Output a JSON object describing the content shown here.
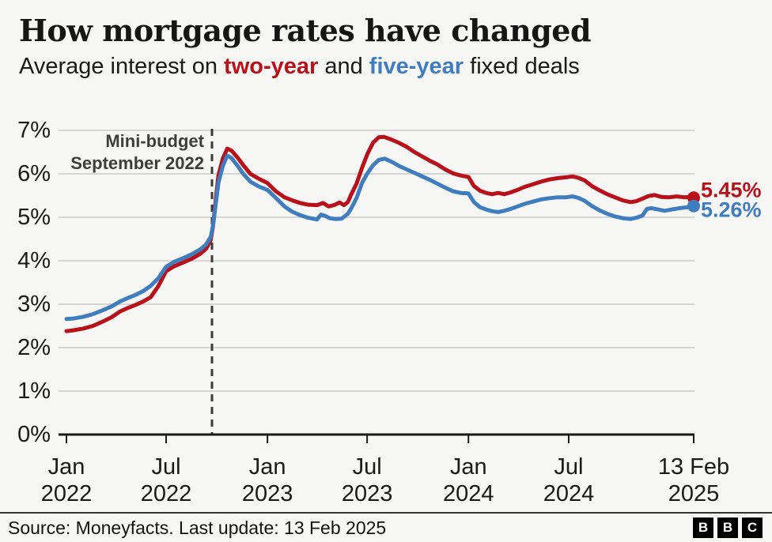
{
  "header": {
    "title": "How mortgage rates have changed",
    "subtitle": {
      "part1": "Average interest on ",
      "two_year_label": "two-year",
      "part2": " and ",
      "five_year_label": "five-year",
      "part3": " fixed deals"
    }
  },
  "colors": {
    "two_year": "#b91119",
    "five_year": "#3f7dbe",
    "axis": "#1a1a1a",
    "gridline": "#d5d5d5",
    "dashed_line": "#3a3a3a",
    "annotation_text": "#3d3d3d",
    "background": "#f6f6f5"
  },
  "footer": {
    "source": "Source: Moneyfacts. Last update: 13 Feb 2025",
    "logo_letters": [
      "B",
      "B",
      "C"
    ]
  },
  "chart_data": {
    "type": "line",
    "title": "How mortgage rates have changed",
    "subtitle": "Average interest on two-year and five-year fixed deals",
    "x_range": [
      "2022-01-01",
      "2025-02-13"
    ],
    "ylim": [
      0,
      7
    ],
    "grid": true,
    "y_ticks": [
      {
        "v": 7,
        "label": "7%"
      },
      {
        "v": 6,
        "label": "6%"
      },
      {
        "v": 5,
        "label": "5%"
      },
      {
        "v": 4,
        "label": "4%"
      },
      {
        "v": 3,
        "label": "3%"
      },
      {
        "v": 2,
        "label": "2%"
      },
      {
        "v": 1,
        "label": "1%"
      },
      {
        "v": 0,
        "label": "0%"
      }
    ],
    "x_ticks": [
      {
        "date": "2022-01-01",
        "lines": [
          "Jan",
          "2022"
        ]
      },
      {
        "date": "2022-07-01",
        "lines": [
          "Jul",
          "2022"
        ]
      },
      {
        "date": "2023-01-01",
        "lines": [
          "Jan",
          "2023"
        ]
      },
      {
        "date": "2023-07-01",
        "lines": [
          "Jul",
          "2023"
        ]
      },
      {
        "date": "2024-01-01",
        "lines": [
          "Jan",
          "2024"
        ]
      },
      {
        "date": "2024-07-01",
        "lines": [
          "Jul",
          "2024"
        ]
      },
      {
        "date": "2025-02-13",
        "lines": [
          "13 Feb",
          "2025"
        ]
      }
    ],
    "annotation": {
      "date": "2022-09-23",
      "line1": "Mini-budget",
      "line2": "September 2022"
    },
    "series": [
      {
        "name": "two-year",
        "color": "#b91119",
        "end_label": "5.45%",
        "points": [
          [
            "2022-01-01",
            2.38
          ],
          [
            "2022-01-14",
            2.4
          ],
          [
            "2022-02-01",
            2.44
          ],
          [
            "2022-02-18",
            2.5
          ],
          [
            "2022-03-08",
            2.6
          ],
          [
            "2022-03-24",
            2.7
          ],
          [
            "2022-04-08",
            2.83
          ],
          [
            "2022-04-22",
            2.91
          ],
          [
            "2022-05-06",
            2.98
          ],
          [
            "2022-05-20",
            3.06
          ],
          [
            "2022-06-03",
            3.16
          ],
          [
            "2022-06-17",
            3.42
          ],
          [
            "2022-07-01",
            3.76
          ],
          [
            "2022-07-15",
            3.87
          ],
          [
            "2022-08-01",
            3.96
          ],
          [
            "2022-08-17",
            4.05
          ],
          [
            "2022-09-01",
            4.16
          ],
          [
            "2022-09-12",
            4.28
          ],
          [
            "2022-09-20",
            4.48
          ],
          [
            "2022-09-24",
            4.78
          ],
          [
            "2022-09-29",
            5.4
          ],
          [
            "2022-10-04",
            5.97
          ],
          [
            "2022-10-12",
            6.35
          ],
          [
            "2022-10-20",
            6.58
          ],
          [
            "2022-10-28",
            6.53
          ],
          [
            "2022-11-08",
            6.37
          ],
          [
            "2022-11-18",
            6.2
          ],
          [
            "2022-12-01",
            6.0
          ],
          [
            "2022-12-16",
            5.89
          ],
          [
            "2023-01-01",
            5.79
          ],
          [
            "2023-01-16",
            5.6
          ],
          [
            "2023-02-01",
            5.46
          ],
          [
            "2023-02-15",
            5.39
          ],
          [
            "2023-03-01",
            5.33
          ],
          [
            "2023-03-16",
            5.29
          ],
          [
            "2023-04-01",
            5.28
          ],
          [
            "2023-04-12",
            5.33
          ],
          [
            "2023-04-22",
            5.25
          ],
          [
            "2023-05-02",
            5.28
          ],
          [
            "2023-05-12",
            5.34
          ],
          [
            "2023-05-20",
            5.28
          ],
          [
            "2023-05-27",
            5.35
          ],
          [
            "2023-06-02",
            5.52
          ],
          [
            "2023-06-12",
            5.78
          ],
          [
            "2023-06-22",
            6.15
          ],
          [
            "2023-07-02",
            6.47
          ],
          [
            "2023-07-12",
            6.72
          ],
          [
            "2023-07-22",
            6.84
          ],
          [
            "2023-08-01",
            6.85
          ],
          [
            "2023-08-14",
            6.79
          ],
          [
            "2023-08-28",
            6.71
          ],
          [
            "2023-09-11",
            6.62
          ],
          [
            "2023-09-25",
            6.5
          ],
          [
            "2023-10-09",
            6.4
          ],
          [
            "2023-10-23",
            6.3
          ],
          [
            "2023-11-06",
            6.21
          ],
          [
            "2023-11-20",
            6.1
          ],
          [
            "2023-12-04",
            6.01
          ],
          [
            "2023-12-18",
            5.96
          ],
          [
            "2024-01-01",
            5.93
          ],
          [
            "2024-01-11",
            5.72
          ],
          [
            "2024-01-22",
            5.61
          ],
          [
            "2024-02-02",
            5.56
          ],
          [
            "2024-02-13",
            5.53
          ],
          [
            "2024-02-24",
            5.56
          ],
          [
            "2024-03-06",
            5.53
          ],
          [
            "2024-03-17",
            5.57
          ],
          [
            "2024-03-28",
            5.62
          ],
          [
            "2024-04-12",
            5.7
          ],
          [
            "2024-04-27",
            5.76
          ],
          [
            "2024-05-12",
            5.82
          ],
          [
            "2024-05-27",
            5.87
          ],
          [
            "2024-06-11",
            5.9
          ],
          [
            "2024-06-26",
            5.92
          ],
          [
            "2024-07-08",
            5.94
          ],
          [
            "2024-07-18",
            5.91
          ],
          [
            "2024-07-30",
            5.85
          ],
          [
            "2024-08-12",
            5.72
          ],
          [
            "2024-08-26",
            5.62
          ],
          [
            "2024-09-09",
            5.53
          ],
          [
            "2024-09-23",
            5.46
          ],
          [
            "2024-10-07",
            5.39
          ],
          [
            "2024-10-21",
            5.35
          ],
          [
            "2024-11-01",
            5.37
          ],
          [
            "2024-11-12",
            5.43
          ],
          [
            "2024-11-23",
            5.49
          ],
          [
            "2024-12-04",
            5.51
          ],
          [
            "2024-12-16",
            5.47
          ],
          [
            "2024-12-30",
            5.46
          ],
          [
            "2025-01-13",
            5.48
          ],
          [
            "2025-01-27",
            5.46
          ],
          [
            "2025-02-06",
            5.47
          ],
          [
            "2025-02-13",
            5.45
          ]
        ]
      },
      {
        "name": "five-year",
        "color": "#3f7dbe",
        "end_label": "5.26%",
        "points": [
          [
            "2022-01-01",
            2.66
          ],
          [
            "2022-01-14",
            2.67
          ],
          [
            "2022-02-01",
            2.71
          ],
          [
            "2022-02-18",
            2.77
          ],
          [
            "2022-03-08",
            2.86
          ],
          [
            "2022-03-24",
            2.95
          ],
          [
            "2022-04-08",
            3.06
          ],
          [
            "2022-04-22",
            3.14
          ],
          [
            "2022-05-06",
            3.21
          ],
          [
            "2022-05-20",
            3.3
          ],
          [
            "2022-06-03",
            3.42
          ],
          [
            "2022-06-17",
            3.6
          ],
          [
            "2022-07-01",
            3.86
          ],
          [
            "2022-07-15",
            3.97
          ],
          [
            "2022-08-01",
            4.06
          ],
          [
            "2022-08-17",
            4.15
          ],
          [
            "2022-09-01",
            4.26
          ],
          [
            "2022-09-12",
            4.38
          ],
          [
            "2022-09-20",
            4.55
          ],
          [
            "2022-09-24",
            4.8
          ],
          [
            "2022-09-29",
            5.3
          ],
          [
            "2022-10-04",
            5.8
          ],
          [
            "2022-10-12",
            6.18
          ],
          [
            "2022-10-20",
            6.42
          ],
          [
            "2022-10-28",
            6.36
          ],
          [
            "2022-11-08",
            6.18
          ],
          [
            "2022-11-18",
            6.0
          ],
          [
            "2022-12-01",
            5.82
          ],
          [
            "2022-12-16",
            5.71
          ],
          [
            "2023-01-01",
            5.63
          ],
          [
            "2023-01-16",
            5.45
          ],
          [
            "2023-02-01",
            5.25
          ],
          [
            "2023-02-15",
            5.13
          ],
          [
            "2023-03-01",
            5.05
          ],
          [
            "2023-03-16",
            4.99
          ],
          [
            "2023-04-01",
            4.95
          ],
          [
            "2023-04-08",
            5.06
          ],
          [
            "2023-04-16",
            5.03
          ],
          [
            "2023-04-24",
            4.98
          ],
          [
            "2023-05-04",
            4.96
          ],
          [
            "2023-05-16",
            4.97
          ],
          [
            "2023-05-27",
            5.08
          ],
          [
            "2023-06-02",
            5.2
          ],
          [
            "2023-06-12",
            5.45
          ],
          [
            "2023-06-22",
            5.8
          ],
          [
            "2023-07-02",
            6.02
          ],
          [
            "2023-07-12",
            6.2
          ],
          [
            "2023-07-22",
            6.32
          ],
          [
            "2023-08-02",
            6.35
          ],
          [
            "2023-08-14",
            6.28
          ],
          [
            "2023-08-28",
            6.18
          ],
          [
            "2023-09-11",
            6.1
          ],
          [
            "2023-09-25",
            6.02
          ],
          [
            "2023-10-09",
            5.94
          ],
          [
            "2023-10-23",
            5.86
          ],
          [
            "2023-11-06",
            5.77
          ],
          [
            "2023-11-20",
            5.68
          ],
          [
            "2023-12-04",
            5.6
          ],
          [
            "2023-12-18",
            5.56
          ],
          [
            "2024-01-01",
            5.55
          ],
          [
            "2024-01-11",
            5.35
          ],
          [
            "2024-01-22",
            5.23
          ],
          [
            "2024-02-02",
            5.18
          ],
          [
            "2024-02-13",
            5.14
          ],
          [
            "2024-02-24",
            5.12
          ],
          [
            "2024-03-06",
            5.15
          ],
          [
            "2024-03-17",
            5.19
          ],
          [
            "2024-03-28",
            5.24
          ],
          [
            "2024-04-12",
            5.31
          ],
          [
            "2024-04-27",
            5.36
          ],
          [
            "2024-05-12",
            5.41
          ],
          [
            "2024-05-27",
            5.44
          ],
          [
            "2024-06-11",
            5.46
          ],
          [
            "2024-06-26",
            5.46
          ],
          [
            "2024-07-08",
            5.48
          ],
          [
            "2024-07-18",
            5.45
          ],
          [
            "2024-07-30",
            5.38
          ],
          [
            "2024-08-12",
            5.26
          ],
          [
            "2024-08-26",
            5.16
          ],
          [
            "2024-09-09",
            5.08
          ],
          [
            "2024-09-23",
            5.02
          ],
          [
            "2024-10-07",
            4.98
          ],
          [
            "2024-10-21",
            4.96
          ],
          [
            "2024-11-01",
            4.99
          ],
          [
            "2024-11-12",
            5.04
          ],
          [
            "2024-11-20",
            5.19
          ],
          [
            "2024-11-28",
            5.21
          ],
          [
            "2024-12-10",
            5.18
          ],
          [
            "2024-12-22",
            5.15
          ],
          [
            "2025-01-05",
            5.18
          ],
          [
            "2025-01-19",
            5.21
          ],
          [
            "2025-02-02",
            5.23
          ],
          [
            "2025-02-13",
            5.26
          ]
        ]
      }
    ],
    "legend_position": "end-of-line-labels"
  }
}
